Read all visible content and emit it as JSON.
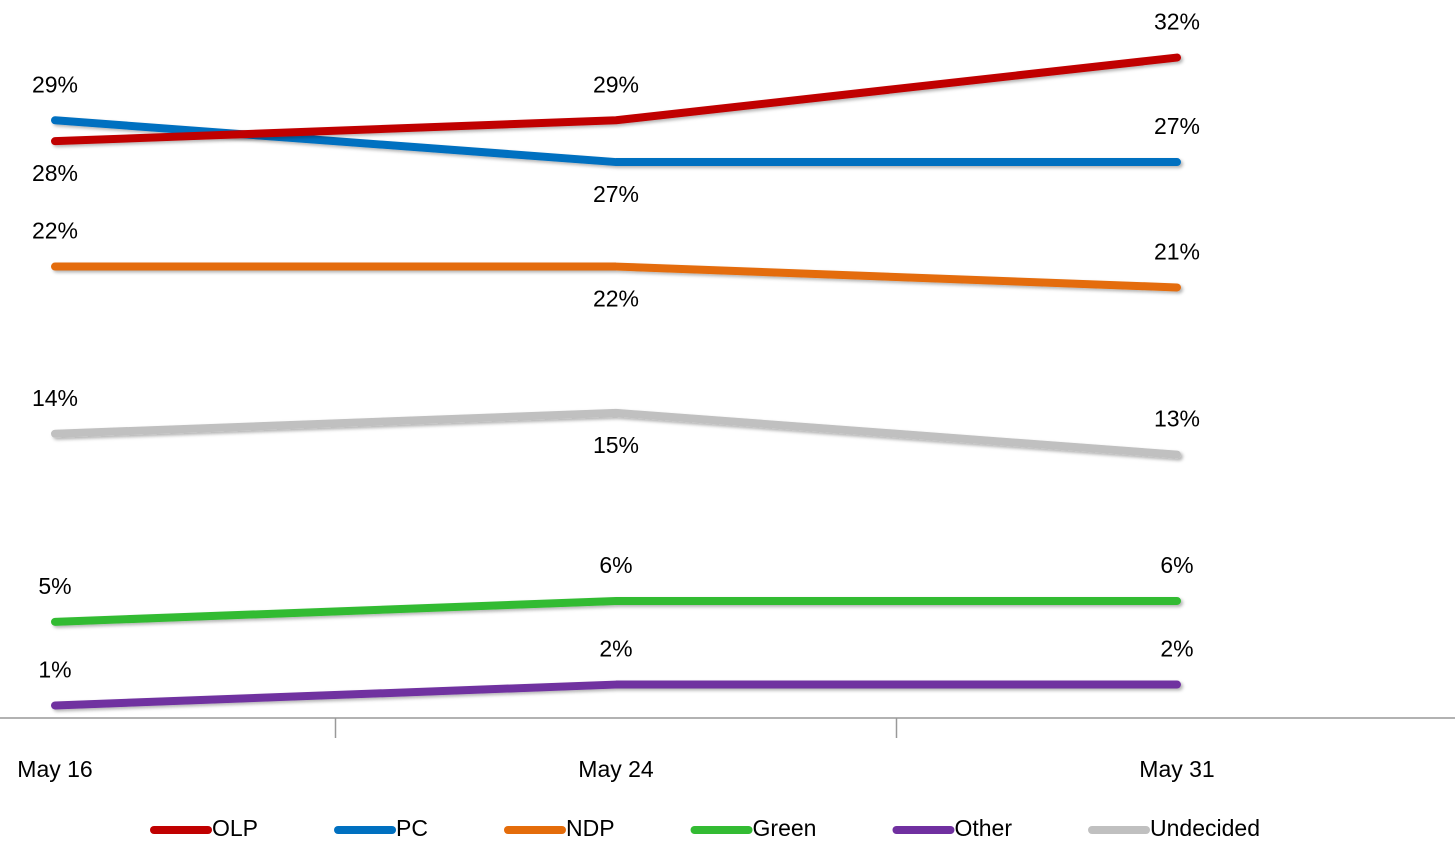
{
  "chart_data": {
    "type": "line",
    "categories": [
      "May 16",
      "May 24",
      "May 31"
    ],
    "ylim": [
      0.4,
      34
    ],
    "legend": "bottom",
    "series": [
      {
        "name": "OLP",
        "color": "#c00000",
        "values": [
          28,
          29,
          32
        ],
        "value_labels": [
          "28%",
          "29%",
          "32%"
        ]
      },
      {
        "name": "PC",
        "color": "#0070c0",
        "values": [
          29,
          27,
          27
        ],
        "value_labels": [
          "29%",
          "27%",
          "27%"
        ]
      },
      {
        "name": "NDP",
        "color": "#e46c0a",
        "values": [
          22,
          22,
          21
        ],
        "value_labels": [
          "22%",
          "22%",
          "21%"
        ]
      },
      {
        "name": "Green",
        "color": "#33bb33",
        "values": [
          5,
          6,
          6
        ],
        "value_labels": [
          "5%",
          "6%",
          "6%"
        ]
      },
      {
        "name": "Other",
        "color": "#7030a0",
        "values": [
          1,
          2,
          2
        ],
        "value_labels": [
          "1%",
          "2%",
          "2%"
        ]
      },
      {
        "name": "Undecided",
        "color": "#c0c0c0",
        "values": [
          14,
          15,
          13
        ],
        "value_labels": [
          "14%",
          "15%",
          "13%"
        ]
      }
    ]
  }
}
